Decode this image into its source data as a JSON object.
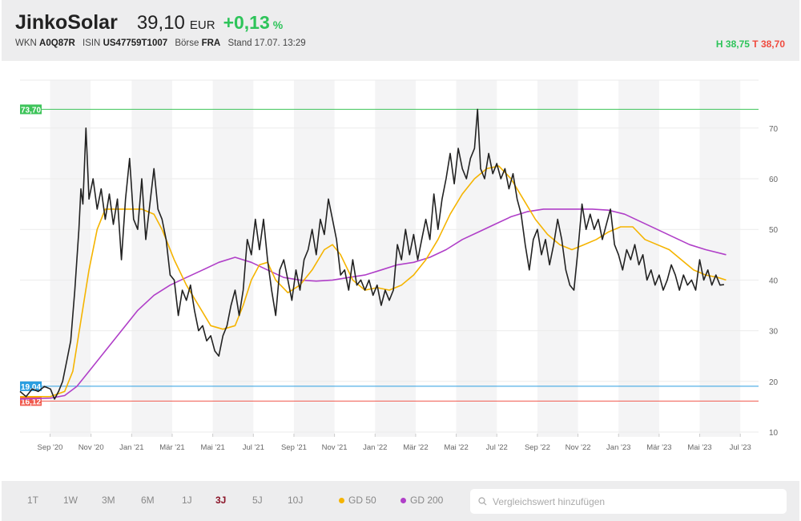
{
  "header": {
    "name": "JinkoSolar",
    "price": "39,10",
    "currency": "EUR",
    "change": "+0,13",
    "change_unit": "%",
    "wkn_label": "WKN",
    "wkn": "A0Q87R",
    "isin_label": "ISIN",
    "isin": "US47759T1007",
    "exchange_label": "Börse",
    "exchange": "FRA",
    "stand": "Stand 17.07. 13:29",
    "high": "H 38,75",
    "low": "T 38,70"
  },
  "colors": {
    "price": "#222222",
    "gd50": "#f5b400",
    "gd200": "#b03fc8",
    "high_line": "#3ec45a",
    "mid_line": "#2a9ee0",
    "low_line": "#f05a4e"
  },
  "chart_data": {
    "type": "line",
    "x_unit": "months since 17.07.2020",
    "xlim": [
      0,
      36.4
    ],
    "ylim": [
      8.5,
      78
    ],
    "y_ticks": [
      10,
      20,
      30,
      40,
      50,
      60,
      70
    ],
    "x_ticks": [
      {
        "t": 1.48,
        "label": "Sep '20"
      },
      {
        "t": 3.5,
        "label": "Nov '20"
      },
      {
        "t": 5.5,
        "label": "Jan '21"
      },
      {
        "t": 7.5,
        "label": "Mär '21"
      },
      {
        "t": 9.5,
        "label": "Mai '21"
      },
      {
        "t": 11.5,
        "label": "Jul '21"
      },
      {
        "t": 13.5,
        "label": "Sep '21"
      },
      {
        "t": 15.5,
        "label": "Nov '21"
      },
      {
        "t": 17.5,
        "label": "Jan '22"
      },
      {
        "t": 19.5,
        "label": "Mär '22"
      },
      {
        "t": 21.5,
        "label": "Mai '22"
      },
      {
        "t": 23.5,
        "label": "Jul '22"
      },
      {
        "t": 25.5,
        "label": "Sep '22"
      },
      {
        "t": 27.5,
        "label": "Nov '22"
      },
      {
        "t": 29.5,
        "label": "Jan '23"
      },
      {
        "t": 31.5,
        "label": "Mär '23"
      },
      {
        "t": 33.5,
        "label": "Mai '23"
      },
      {
        "t": 35.5,
        "label": "Jul '23"
      }
    ],
    "ref_lines": [
      {
        "value": 73.7,
        "label": "73,70",
        "color": "#3ec45a"
      },
      {
        "value": 19.04,
        "label": "19,04",
        "color": "#2a9ee0"
      },
      {
        "value": 16.12,
        "label": "16,12",
        "color": "#f05a4e"
      }
    ],
    "series": [
      {
        "name": "Kurs",
        "color": "#222222",
        "points": [
          [
            0,
            18
          ],
          [
            0.3,
            17
          ],
          [
            0.6,
            18.5
          ],
          [
            0.9,
            18
          ],
          [
            1.2,
            19
          ],
          [
            1.5,
            18.5
          ],
          [
            1.7,
            16.5
          ],
          [
            1.9,
            18
          ],
          [
            2.1,
            20
          ],
          [
            2.3,
            24
          ],
          [
            2.5,
            28
          ],
          [
            2.7,
            38
          ],
          [
            2.9,
            50
          ],
          [
            3.0,
            58
          ],
          [
            3.1,
            55
          ],
          [
            3.25,
            70
          ],
          [
            3.4,
            56
          ],
          [
            3.6,
            60
          ],
          [
            3.8,
            54
          ],
          [
            4.0,
            58
          ],
          [
            4.2,
            52
          ],
          [
            4.4,
            57
          ],
          [
            4.6,
            51
          ],
          [
            4.8,
            56
          ],
          [
            5.0,
            44
          ],
          [
            5.2,
            56
          ],
          [
            5.4,
            64
          ],
          [
            5.6,
            52
          ],
          [
            5.8,
            50
          ],
          [
            6.0,
            60
          ],
          [
            6.2,
            48
          ],
          [
            6.4,
            55
          ],
          [
            6.6,
            62
          ],
          [
            6.8,
            54
          ],
          [
            7.0,
            52
          ],
          [
            7.2,
            48
          ],
          [
            7.4,
            41
          ],
          [
            7.6,
            40
          ],
          [
            7.8,
            33
          ],
          [
            8.0,
            38
          ],
          [
            8.2,
            36
          ],
          [
            8.4,
            39
          ],
          [
            8.6,
            34
          ],
          [
            8.8,
            30
          ],
          [
            9.0,
            31
          ],
          [
            9.2,
            28
          ],
          [
            9.4,
            29
          ],
          [
            9.6,
            26
          ],
          [
            9.8,
            25
          ],
          [
            10.0,
            29
          ],
          [
            10.2,
            31
          ],
          [
            10.4,
            35
          ],
          [
            10.6,
            38
          ],
          [
            10.8,
            33
          ],
          [
            11.0,
            38
          ],
          [
            11.2,
            48
          ],
          [
            11.4,
            45
          ],
          [
            11.6,
            52
          ],
          [
            11.8,
            46
          ],
          [
            12.0,
            52
          ],
          [
            12.2,
            44
          ],
          [
            12.4,
            38
          ],
          [
            12.6,
            33
          ],
          [
            12.8,
            42
          ],
          [
            13.0,
            44
          ],
          [
            13.2,
            40
          ],
          [
            13.4,
            36
          ],
          [
            13.6,
            42
          ],
          [
            13.8,
            38
          ],
          [
            14.0,
            44
          ],
          [
            14.2,
            46
          ],
          [
            14.4,
            50
          ],
          [
            14.6,
            45
          ],
          [
            14.8,
            52
          ],
          [
            15.0,
            49
          ],
          [
            15.2,
            56
          ],
          [
            15.4,
            52
          ],
          [
            15.6,
            48
          ],
          [
            15.8,
            41
          ],
          [
            16.0,
            42
          ],
          [
            16.2,
            38
          ],
          [
            16.4,
            44
          ],
          [
            16.6,
            39
          ],
          [
            16.8,
            40
          ],
          [
            17.0,
            38
          ],
          [
            17.2,
            40
          ],
          [
            17.4,
            37
          ],
          [
            17.6,
            39
          ],
          [
            17.8,
            35
          ],
          [
            18.0,
            38
          ],
          [
            18.2,
            36
          ],
          [
            18.4,
            38
          ],
          [
            18.6,
            47
          ],
          [
            18.8,
            44
          ],
          [
            19.0,
            50
          ],
          [
            19.2,
            45
          ],
          [
            19.4,
            49
          ],
          [
            19.6,
            44
          ],
          [
            19.8,
            48
          ],
          [
            20.0,
            52
          ],
          [
            20.2,
            48
          ],
          [
            20.4,
            57
          ],
          [
            20.6,
            50
          ],
          [
            20.8,
            56
          ],
          [
            21.0,
            60
          ],
          [
            21.2,
            65
          ],
          [
            21.4,
            59
          ],
          [
            21.6,
            66
          ],
          [
            21.8,
            62
          ],
          [
            22.0,
            60
          ],
          [
            22.2,
            64
          ],
          [
            22.4,
            66
          ],
          [
            22.55,
            73.7
          ],
          [
            22.7,
            62
          ],
          [
            22.9,
            60
          ],
          [
            23.1,
            65
          ],
          [
            23.3,
            61
          ],
          [
            23.5,
            63
          ],
          [
            23.7,
            60
          ],
          [
            23.9,
            62
          ],
          [
            24.1,
            58
          ],
          [
            24.3,
            61
          ],
          [
            24.5,
            56
          ],
          [
            24.7,
            53
          ],
          [
            24.9,
            47
          ],
          [
            25.1,
            42
          ],
          [
            25.3,
            48
          ],
          [
            25.5,
            50
          ],
          [
            25.7,
            45
          ],
          [
            25.9,
            48
          ],
          [
            26.1,
            43
          ],
          [
            26.3,
            47
          ],
          [
            26.5,
            52
          ],
          [
            26.7,
            48
          ],
          [
            26.9,
            42
          ],
          [
            27.1,
            39
          ],
          [
            27.3,
            38
          ],
          [
            27.5,
            46
          ],
          [
            27.7,
            55
          ],
          [
            27.9,
            50
          ],
          [
            28.1,
            53
          ],
          [
            28.3,
            50
          ],
          [
            28.5,
            52
          ],
          [
            28.7,
            48
          ],
          [
            28.9,
            51
          ],
          [
            29.1,
            54
          ],
          [
            29.3,
            47
          ],
          [
            29.5,
            45
          ],
          [
            29.7,
            42
          ],
          [
            29.9,
            46
          ],
          [
            30.1,
            44
          ],
          [
            30.3,
            47
          ],
          [
            30.5,
            43
          ],
          [
            30.7,
            45
          ],
          [
            30.9,
            40
          ],
          [
            31.1,
            42
          ],
          [
            31.3,
            39
          ],
          [
            31.5,
            41
          ],
          [
            31.7,
            38
          ],
          [
            31.9,
            40
          ],
          [
            32.1,
            43
          ],
          [
            32.3,
            41
          ],
          [
            32.5,
            38
          ],
          [
            32.7,
            41
          ],
          [
            32.9,
            39
          ],
          [
            33.1,
            40
          ],
          [
            33.3,
            38
          ],
          [
            33.5,
            44
          ],
          [
            33.7,
            40
          ],
          [
            33.9,
            42
          ],
          [
            34.1,
            39
          ],
          [
            34.3,
            41
          ],
          [
            34.5,
            39
          ],
          [
            34.7,
            39.1
          ]
        ]
      },
      {
        "name": "GD 50",
        "color": "#f5b400",
        "points": [
          [
            0,
            17
          ],
          [
            1.5,
            17
          ],
          [
            2.2,
            18
          ],
          [
            2.6,
            22
          ],
          [
            3.0,
            32
          ],
          [
            3.4,
            42
          ],
          [
            3.8,
            50
          ],
          [
            4.2,
            54
          ],
          [
            5.0,
            54
          ],
          [
            6.0,
            54
          ],
          [
            6.6,
            53
          ],
          [
            7.0,
            50
          ],
          [
            7.6,
            44
          ],
          [
            8.2,
            39
          ],
          [
            8.8,
            35
          ],
          [
            9.4,
            31
          ],
          [
            10.0,
            30.3
          ],
          [
            10.6,
            31
          ],
          [
            11.0,
            35
          ],
          [
            11.4,
            40
          ],
          [
            11.8,
            43
          ],
          [
            12.2,
            43.5
          ],
          [
            12.6,
            40
          ],
          [
            13.2,
            37.5
          ],
          [
            13.8,
            39
          ],
          [
            14.4,
            42
          ],
          [
            15.0,
            46
          ],
          [
            15.4,
            47
          ],
          [
            15.8,
            45
          ],
          [
            16.4,
            40
          ],
          [
            17.0,
            38
          ],
          [
            17.6,
            38.5
          ],
          [
            18.2,
            38
          ],
          [
            18.8,
            39
          ],
          [
            19.4,
            41
          ],
          [
            20.0,
            44
          ],
          [
            20.6,
            48
          ],
          [
            21.2,
            53
          ],
          [
            21.8,
            57
          ],
          [
            22.4,
            60
          ],
          [
            23.0,
            62
          ],
          [
            23.6,
            62.5
          ],
          [
            24.2,
            60
          ],
          [
            24.8,
            56
          ],
          [
            25.4,
            52
          ],
          [
            26.0,
            49
          ],
          [
            26.6,
            47
          ],
          [
            27.2,
            46
          ],
          [
            27.8,
            47
          ],
          [
            28.4,
            48
          ],
          [
            29.0,
            49.5
          ],
          [
            29.6,
            50.5
          ],
          [
            30.2,
            50.5
          ],
          [
            30.8,
            48
          ],
          [
            31.4,
            47
          ],
          [
            32.0,
            46
          ],
          [
            32.6,
            44
          ],
          [
            33.2,
            42
          ],
          [
            33.8,
            41
          ],
          [
            34.4,
            40.5
          ],
          [
            34.8,
            40
          ]
        ]
      },
      {
        "name": "GD 200",
        "color": "#b03fc8",
        "points": [
          [
            0,
            16.5
          ],
          [
            1.5,
            16.7
          ],
          [
            2.2,
            17.2
          ],
          [
            2.8,
            19
          ],
          [
            3.4,
            22
          ],
          [
            4.2,
            26
          ],
          [
            5.0,
            30
          ],
          [
            5.8,
            34
          ],
          [
            6.6,
            37
          ],
          [
            7.4,
            39
          ],
          [
            8.2,
            40.5
          ],
          [
            9.0,
            42
          ],
          [
            9.8,
            43.5
          ],
          [
            10.6,
            44.5
          ],
          [
            11.4,
            43.5
          ],
          [
            12.2,
            42
          ],
          [
            13.0,
            40.5
          ],
          [
            13.8,
            40
          ],
          [
            14.6,
            39.8
          ],
          [
            15.4,
            40
          ],
          [
            16.2,
            40.5
          ],
          [
            17.0,
            41
          ],
          [
            17.8,
            42
          ],
          [
            18.6,
            43
          ],
          [
            19.4,
            43.5
          ],
          [
            20.2,
            44.5
          ],
          [
            21.0,
            46
          ],
          [
            21.8,
            48
          ],
          [
            22.6,
            49.5
          ],
          [
            23.4,
            51
          ],
          [
            24.2,
            52.5
          ],
          [
            25.0,
            53.5
          ],
          [
            25.8,
            54
          ],
          [
            26.6,
            54
          ],
          [
            27.4,
            54
          ],
          [
            28.2,
            54
          ],
          [
            29.0,
            53.8
          ],
          [
            29.8,
            53
          ],
          [
            30.6,
            51.5
          ],
          [
            31.4,
            50
          ],
          [
            32.2,
            48.5
          ],
          [
            33.0,
            47
          ],
          [
            33.8,
            46
          ],
          [
            34.8,
            45
          ]
        ]
      }
    ]
  },
  "footer": {
    "ranges": [
      "1T",
      "1W",
      "3M",
      "6M",
      "1J",
      "3J",
      "5J",
      "10J"
    ],
    "active_range": "3J",
    "legend": [
      "GD 50",
      "GD 200"
    ],
    "search_placeholder": "Vergleichswert hinzufügen"
  }
}
